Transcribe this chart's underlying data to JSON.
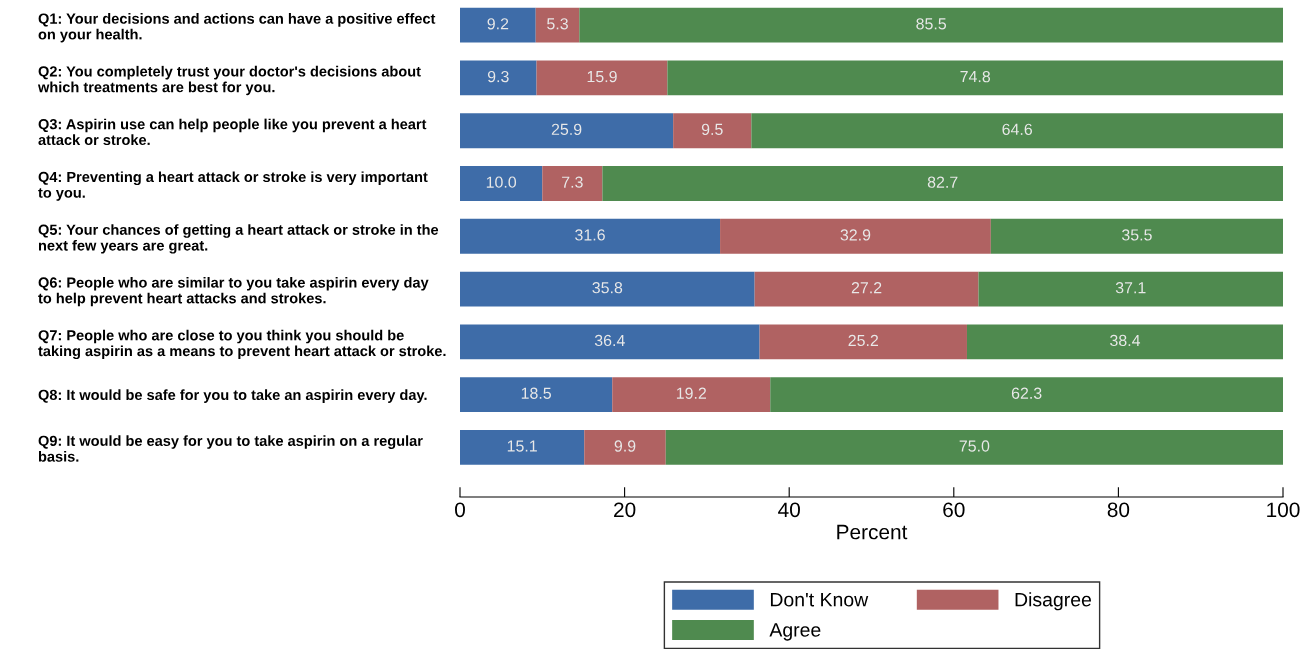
{
  "chart_data": {
    "type": "bar",
    "orientation": "horizontal",
    "stacked": true,
    "xlabel": "Percent",
    "categories": [
      "Q1: Your decisions and actions can have a positive effect\non your health.",
      "Q2: You completely trust your doctor's decisions about\nwhich treatments are best for you.",
      "Q3: Aspirin use can help people like you prevent a heart\nattack or stroke.",
      "Q4: Preventing a heart attack or stroke is very important\nto you.",
      "Q5: Your chances of getting a heart attack or stroke in the\nnext few years are great.",
      "Q6: People who are similar to you take aspirin every day\nto help prevent heart attacks and strokes.",
      "Q7: People who are close to you think you should be\ntaking aspirin as a means to prevent heart attack or stroke.",
      "Q8: It would be safe for you to take an aspirin every day.",
      "Q9: It would be easy for you to take aspirin on a regular\nbasis."
    ],
    "series": [
      {
        "name": "Don't Know",
        "color": "#3e6ca8",
        "values": [
          9.2,
          9.3,
          25.9,
          10,
          31.6,
          35.8,
          36.4,
          18.5,
          15.1
        ],
        "value_labels": [
          "9.2",
          "9.3",
          "25.9",
          "10.0",
          "31.6",
          "35.8",
          "36.4",
          "18.5",
          "15.1"
        ]
      },
      {
        "name": "Disagree",
        "color": "#b06262",
        "values": [
          5.3,
          15.9,
          9.5,
          7.3,
          32.9,
          27.2,
          25.2,
          19.2,
          9.9
        ],
        "value_labels": [
          "5.3",
          "15.9",
          "9.5",
          "7.3",
          "32.9",
          "27.2",
          "25.2",
          "19.2",
          "9.9"
        ]
      },
      {
        "name": "Agree",
        "color": "#4f8a4f",
        "values": [
          85.5,
          74.8,
          64.6,
          82.7,
          35.5,
          37.1,
          38.4,
          62.3,
          75
        ],
        "value_labels": [
          "85.5",
          "74.8",
          "64.6",
          "82.7",
          "35.5",
          "37.1",
          "38.4",
          "62.3",
          "75.0"
        ]
      }
    ],
    "xlim": [
      0,
      100
    ],
    "xticks": [
      0,
      20,
      40,
      60,
      80,
      100
    ],
    "legend": "bottom",
    "grid": false
  }
}
